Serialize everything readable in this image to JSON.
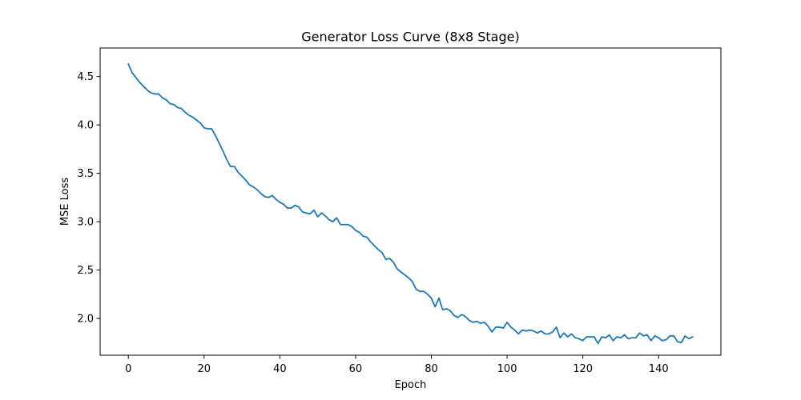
{
  "chart_data": {
    "type": "line",
    "title": "Generator Loss Curve (8x8 Stage)",
    "xlabel": "Epoch",
    "ylabel": "MSE Loss",
    "xlim": [
      -7.45,
      156.45
    ],
    "ylim": [
      1.62,
      4.795
    ],
    "xticks": [
      0,
      20,
      40,
      60,
      80,
      100,
      120,
      140
    ],
    "yticks": [
      2.0,
      2.5,
      3.0,
      3.5,
      4.0,
      4.5
    ],
    "grid": false,
    "line_color": "#1f77b4",
    "series": [
      {
        "x": [
          0,
          1,
          2,
          3,
          4,
          5,
          6,
          7,
          8,
          9,
          10,
          11,
          12,
          13,
          14,
          15,
          16,
          17,
          18,
          19,
          20,
          21,
          22,
          23,
          24,
          25,
          26,
          27,
          28,
          29,
          30,
          31,
          32,
          33,
          34,
          35,
          36,
          37,
          38,
          39,
          40,
          41,
          42,
          43,
          44,
          45,
          46,
          47,
          48,
          49,
          50,
          51,
          52,
          53,
          54,
          55,
          56,
          57,
          58,
          59,
          60,
          61,
          62,
          63,
          64,
          65,
          66,
          67,
          68,
          69,
          70,
          71,
          72,
          73,
          74,
          75,
          76,
          77,
          78,
          79,
          80,
          81,
          82,
          83,
          84,
          85,
          86,
          87,
          88,
          89,
          90,
          91,
          92,
          93,
          94,
          95,
          96,
          97,
          98,
          99,
          100,
          101,
          102,
          103,
          104,
          105,
          106,
          107,
          108,
          109,
          110,
          111,
          112,
          113,
          114,
          115,
          116,
          117,
          118,
          119,
          120,
          121,
          122,
          123,
          124,
          125,
          126,
          127,
          128,
          129,
          130,
          131,
          132,
          133,
          134,
          135,
          136,
          137,
          138,
          139,
          140,
          141,
          142,
          143,
          144,
          145,
          146,
          147,
          148,
          149
        ],
        "values": [
          4.63,
          4.54,
          4.49,
          4.44,
          4.4,
          4.36,
          4.33,
          4.32,
          4.32,
          4.28,
          4.26,
          4.22,
          4.21,
          4.18,
          4.17,
          4.13,
          4.1,
          4.08,
          4.05,
          4.02,
          3.97,
          3.96,
          3.96,
          3.89,
          3.81,
          3.73,
          3.64,
          3.57,
          3.57,
          3.51,
          3.47,
          3.43,
          3.38,
          3.36,
          3.33,
          3.29,
          3.26,
          3.25,
          3.27,
          3.23,
          3.2,
          3.18,
          3.14,
          3.14,
          3.17,
          3.15,
          3.1,
          3.09,
          3.08,
          3.12,
          3.05,
          3.09,
          3.06,
          3.02,
          3.0,
          3.04,
          2.97,
          2.97,
          2.97,
          2.95,
          2.91,
          2.89,
          2.85,
          2.84,
          2.79,
          2.75,
          2.71,
          2.68,
          2.61,
          2.62,
          2.58,
          2.51,
          2.48,
          2.45,
          2.42,
          2.38,
          2.3,
          2.28,
          2.28,
          2.25,
          2.21,
          2.12,
          2.21,
          2.09,
          2.1,
          2.08,
          2.03,
          2.01,
          2.04,
          2.02,
          1.98,
          1.96,
          1.97,
          1.95,
          1.96,
          1.92,
          1.86,
          1.91,
          1.91,
          1.9,
          1.96,
          1.91,
          1.88,
          1.84,
          1.88,
          1.87,
          1.88,
          1.87,
          1.85,
          1.87,
          1.84,
          1.84,
          1.86,
          1.91,
          1.8,
          1.85,
          1.81,
          1.84,
          1.8,
          1.79,
          1.77,
          1.81,
          1.81,
          1.81,
          1.74,
          1.81,
          1.8,
          1.83,
          1.77,
          1.81,
          1.8,
          1.83,
          1.79,
          1.8,
          1.8,
          1.85,
          1.82,
          1.83,
          1.77,
          1.82,
          1.8,
          1.77,
          1.78,
          1.82,
          1.82,
          1.76,
          1.75,
          1.82,
          1.79,
          1.81
        ]
      }
    ]
  }
}
